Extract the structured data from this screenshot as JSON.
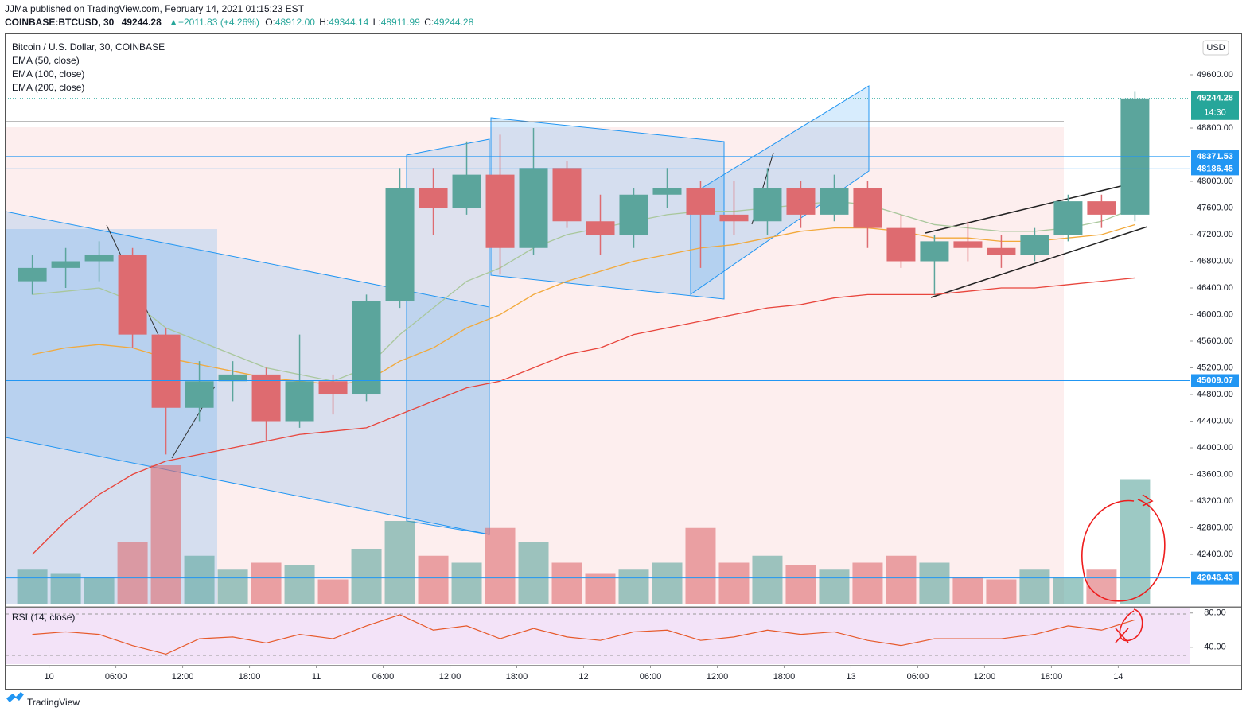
{
  "header": {
    "publisher": "JJMa published on TradingView.com, February 14, 2021 01:15:23 EST",
    "symbol": "COINBASE:BTCUSD, 30",
    "price": "49244.28",
    "change": "▲+2011.83 (+4.26%)",
    "ohlc": [
      {
        "label": "O:",
        "value": "48912.00"
      },
      {
        "label": "H:",
        "value": "49344.14"
      },
      {
        "label": "L:",
        "value": "48911.99"
      },
      {
        "label": "C:",
        "value": "49244.28"
      }
    ]
  },
  "brand": "TradingView",
  "chart_data": {
    "type": "candlestick",
    "title": "Bitcoin / U.S. Dollar, 30, COINBASE",
    "currency": "USD",
    "up_color": "#5ba59c",
    "down_color": "#de6b70",
    "x": [
      -3,
      0,
      3,
      6,
      9,
      12,
      15,
      18,
      21,
      24,
      27,
      30,
      33,
      36,
      39,
      42,
      45,
      48,
      51,
      54,
      57,
      60,
      63,
      66,
      69,
      72,
      75,
      78,
      81,
      84,
      87,
      90,
      93,
      96
    ],
    "open": [
      46500,
      46700,
      46800,
      46900,
      45700,
      44600,
      45000,
      45100,
      44400,
      45000,
      44800,
      46200,
      47900,
      47600,
      48100,
      47000,
      48200,
      47400,
      47200,
      47800,
      47900,
      47500,
      47400,
      47900,
      47500,
      47900,
      47300,
      46800,
      47100,
      47000,
      46900,
      47200,
      47700,
      47500
    ],
    "high": [
      46900,
      47000,
      47100,
      47000,
      45800,
      45300,
      45300,
      45200,
      45700,
      45100,
      46300,
      48200,
      48200,
      48600,
      48700,
      48800,
      48300,
      47800,
      47900,
      48200,
      48000,
      48000,
      48200,
      48000,
      48100,
      48000,
      47500,
      47200,
      47400,
      47200,
      47300,
      47800,
      47800,
      49344
    ],
    "low": [
      46300,
      46400,
      46500,
      45500,
      43900,
      44400,
      44700,
      44100,
      44300,
      44500,
      44700,
      46100,
      47200,
      47500,
      46600,
      46900,
      47300,
      46900,
      47000,
      47600,
      46700,
      47200,
      47200,
      47300,
      47400,
      47000,
      46700,
      46300,
      46800,
      46700,
      46800,
      47100,
      47300,
      47400
    ],
    "close": [
      46700,
      46800,
      46900,
      45700,
      44600,
      45000,
      45100,
      44400,
      45000,
      44800,
      46200,
      47900,
      47600,
      48100,
      47000,
      48200,
      47400,
      47200,
      47800,
      47900,
      47500,
      47400,
      47900,
      47500,
      47900,
      47300,
      46800,
      47100,
      47000,
      46900,
      47200,
      47700,
      47500,
      49244
    ],
    "series": [
      {
        "name": "EMA (50, close)",
        "color": "#a9c79c",
        "values": [
          46300,
          46350,
          46400,
          46200,
          45800,
          45600,
          45400,
          45200,
          45100,
          45000,
          45200,
          45700,
          46100,
          46500,
          46700,
          47000,
          47200,
          47300,
          47400,
          47500,
          47550,
          47550,
          47600,
          47650,
          47700,
          47650,
          47500,
          47350,
          47300,
          47250,
          47250,
          47300,
          47400,
          47600
        ]
      },
      {
        "name": "EMA (100, close)",
        "color": "#f2a93b",
        "values": [
          45400,
          45500,
          45550,
          45500,
          45350,
          45250,
          45150,
          45050,
          45000,
          44950,
          45000,
          45300,
          45500,
          45800,
          46000,
          46300,
          46500,
          46650,
          46800,
          46900,
          47000,
          47050,
          47150,
          47250,
          47300,
          47300,
          47250,
          47150,
          47150,
          47100,
          47100,
          47150,
          47200,
          47350
        ]
      },
      {
        "name": "EMA (200, close)",
        "color": "#e8453c",
        "values": [
          42400,
          42900,
          43300,
          43600,
          43800,
          43900,
          44000,
          44100,
          44200,
          44250,
          44300,
          44500,
          44700,
          44900,
          45000,
          45200,
          45400,
          45500,
          45700,
          45800,
          45900,
          46000,
          46100,
          46150,
          46250,
          46300,
          46300,
          46300,
          46350,
          46400,
          46400,
          46450,
          46500,
          46550
        ]
      }
    ],
    "volume": {
      "ylim": [
        0,
        100
      ],
      "values": [
        25,
        22,
        20,
        45,
        100,
        35,
        25,
        30,
        28,
        18,
        40,
        60,
        35,
        30,
        55,
        45,
        30,
        22,
        25,
        30,
        55,
        30,
        35,
        28,
        25,
        30,
        35,
        30,
        20,
        18,
        25,
        20,
        25,
        90
      ]
    },
    "rsi": {
      "name": "RSI (14, close)",
      "color": "#e65a2b",
      "ylim": [
        23.1,
        84.4
      ],
      "yticks": [
        {
          "value": 80,
          "label": "80.00"
        },
        {
          "value": 40,
          "label": "40.00"
        }
      ],
      "values": [
        55,
        58,
        55,
        42,
        32,
        50,
        52,
        45,
        55,
        50,
        65,
        78,
        60,
        65,
        50,
        62,
        52,
        48,
        58,
        60,
        48,
        52,
        60,
        55,
        58,
        48,
        42,
        50,
        50,
        50,
        55,
        65,
        60,
        72
      ]
    },
    "xlim": [
      -3.9,
      102.4
    ],
    "xticks": [
      {
        "value": 0,
        "label": "10"
      },
      {
        "value": 6,
        "label": "06:00"
      },
      {
        "value": 12,
        "label": "12:00"
      },
      {
        "value": 18,
        "label": "18:00"
      },
      {
        "value": 24,
        "label": "11"
      },
      {
        "value": 30,
        "label": "06:00"
      },
      {
        "value": 36,
        "label": "12:00"
      },
      {
        "value": 42,
        "label": "18:00"
      },
      {
        "value": 48,
        "label": "12"
      },
      {
        "value": 54,
        "label": "06:00"
      },
      {
        "value": 60,
        "label": "12:00"
      },
      {
        "value": 66,
        "label": "18:00"
      },
      {
        "value": 72,
        "label": "13"
      },
      {
        "value": 78,
        "label": "06:00"
      },
      {
        "value": 84,
        "label": "12:00"
      },
      {
        "value": 90,
        "label": "18:00"
      },
      {
        "value": 96,
        "label": "14"
      }
    ],
    "ylim": [
      41648,
      50197
    ],
    "yticks": [
      {
        "value": 49600,
        "label": "49600.00"
      },
      {
        "value": 48800,
        "label": "48800.00"
      },
      {
        "value": 48000,
        "label": "48000.00"
      },
      {
        "value": 47600,
        "label": "47600.00"
      },
      {
        "value": 47200,
        "label": "47200.00"
      },
      {
        "value": 46800,
        "label": "46800.00"
      },
      {
        "value": 46400,
        "label": "46400.00"
      },
      {
        "value": 46000,
        "label": "46000.00"
      },
      {
        "value": 45600,
        "label": "45600.00"
      },
      {
        "value": 45200,
        "label": "45200.00"
      },
      {
        "value": 44800,
        "label": "44800.00"
      },
      {
        "value": 44400,
        "label": "44400.00"
      },
      {
        "value": 44000,
        "label": "44000.00"
      },
      {
        "value": 43600,
        "label": "43600.00"
      },
      {
        "value": 43200,
        "label": "43200.00"
      },
      {
        "value": 42800,
        "label": "42800.00"
      },
      {
        "value": 42400,
        "label": "42400.00"
      }
    ],
    "levels": [
      48371.53,
      48186.45,
      45009.07,
      42046.43
    ],
    "level_color": "#2196f3",
    "last_price": 49244.28,
    "last_color": "#26a69a",
    "countdown": "14:30",
    "grid": false
  }
}
